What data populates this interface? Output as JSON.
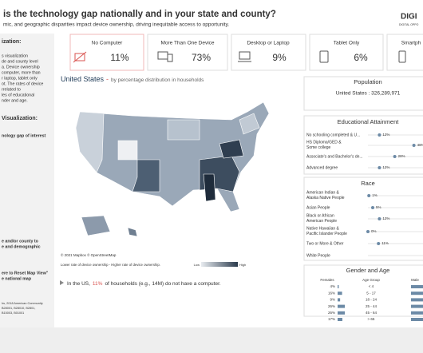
{
  "header": {
    "title": "is the technology gap nationally and in your state and county?",
    "subtitle": "mic, and geographic disparities impact device ownership, driving inequitable access to opportunity.",
    "logo": "DIGI",
    "logo_sub": "DIGITAL OPPO"
  },
  "sidebar": {
    "heading1": "ization:",
    "lines1": [
      "s visualization",
      "de and county level",
      "a. Device ownership",
      "computer, more than",
      "r laptop, tablet only",
      "ot. The rates of device",
      "rrelated to",
      "les of educational",
      "nder and age."
    ],
    "heading2": "Visualization:",
    "lines2": [
      "nology gap of interest"
    ],
    "lines3": [
      "e and/or county to",
      "e and demographic"
    ],
    "lines4": [
      "ere to Reset Map View\"",
      "e national map"
    ],
    "footnotes": [
      "hs, 2018 American Community",
      "B28001, B28010, B2801,",
      "B15003, B01001"
    ]
  },
  "kpis": {
    "labels": [
      "No Computer",
      "More Than One Device",
      "Desktop or Laptop",
      "Tablet Only",
      "Smartph"
    ],
    "values": [
      11,
      73,
      9,
      6,
      null
    ],
    "value_labels": [
      "11%",
      "73%",
      "9%",
      "6%",
      null
    ]
  },
  "map": {
    "title": "United States",
    "separator": "-",
    "subtitle": "by percentage distribution in households",
    "credit": "© 2021 Mapbox © OpenStreetMap",
    "legend_text": "Lower rate of device ownership - Higher rate of device ownership.",
    "legend_low": "Low",
    "legend_high": "High",
    "footer": {
      "pre": "In the US,",
      "highlight": "11%",
      "post": "of households (e.g., 14M) do not have a computer."
    }
  },
  "population": {
    "title": "Population",
    "text": "United States : 326,289,971"
  },
  "education": {
    "title": "Educational Attainment",
    "categories": [
      "No schooling completed & U...",
      "HS Diploma/GED & Some college",
      "Associate's and Bachelor's de...",
      "Advanced degree"
    ],
    "values": [
      12,
      48,
      28,
      12
    ],
    "value_labels": [
      "12%",
      "48%",
      "28%",
      "12%"
    ],
    "xlim": [
      0,
      60
    ]
  },
  "race": {
    "title": "Race",
    "categories": [
      "American Indian & Alaska Native People",
      "Asian People",
      "Black or African American People",
      "Native Hawaiian & Pacific Islander People",
      "Two or More & Other",
      "White People"
    ],
    "values": [
      1,
      5,
      12,
      0,
      11,
      null
    ],
    "value_labels": [
      "1%",
      "5%",
      "12%",
      "0%",
      "11%",
      null
    ],
    "xlim": [
      0,
      60
    ]
  },
  "gender_age": {
    "title": "Gender and Age",
    "columns": [
      "Females",
      "Age Group",
      "Male"
    ],
    "age_groups": [
      "< 4",
      "5 - 17",
      "18 - 24",
      "25 - 44",
      "45 - 64",
      "> 65"
    ],
    "female_values": [
      4,
      16,
      9,
      26,
      26,
      17
    ],
    "female_labels": [
      "4%",
      "16%",
      "9%",
      "26%",
      "26%",
      "17%"
    ]
  }
}
